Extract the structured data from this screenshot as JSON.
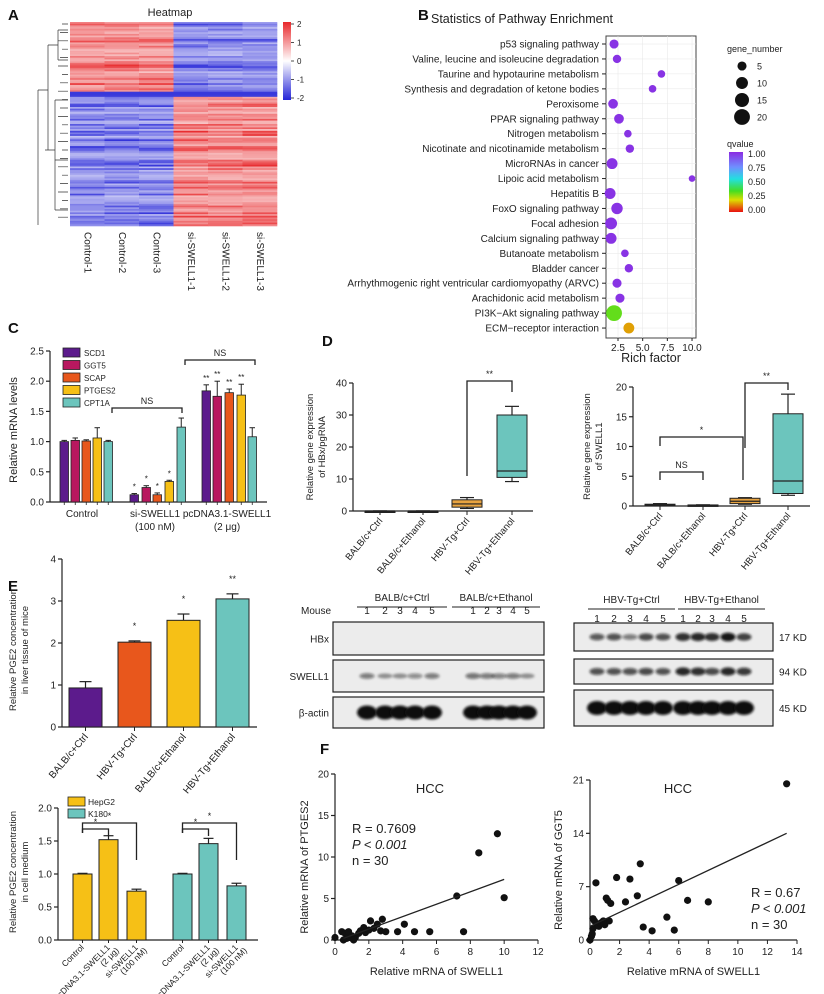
{
  "panel_labels": [
    "A",
    "B",
    "C",
    "D",
    "E",
    "F"
  ],
  "chart_data": {
    "heatmap": {
      "type": "heatmap",
      "title": "Heatmap",
      "columns": [
        "Control-1",
        "Control-2",
        "Control-3",
        "si-SWELL1-1",
        "si-SWELL1-2",
        "si-SWELL1-3"
      ],
      "scale_ticks": [
        "2",
        "1",
        "0",
        "-1",
        "-2"
      ],
      "colors": {
        "high": "#e8282b",
        "mid": "#ffffff",
        "low": "#2424d8"
      },
      "pattern": "upper ~35% rows: Control high / si-SWELL1 low; lower rows: Control low / si-SWELL1 high"
    },
    "enrichment": {
      "type": "scatter",
      "title": "Statistics of Pathway Enrichment",
      "xlabel": "Rich factor",
      "xticks": [
        "2.5",
        "5.0",
        "7.5",
        "10.0"
      ],
      "xlim": [
        1.2,
        10.4
      ],
      "pathways": [
        {
          "name": "p53 signaling pathway",
          "rich": 2.1,
          "genes": 5,
          "q": 0.98
        },
        {
          "name": "Valine, leucine and isoleucine degradation",
          "rich": 2.4,
          "genes": 4,
          "q": 0.98
        },
        {
          "name": "Taurine and hypotaurine metabolism",
          "rich": 6.9,
          "genes": 3,
          "q": 0.98
        },
        {
          "name": "Synthesis and degradation of ketone bodies",
          "rich": 6.0,
          "genes": 3,
          "q": 0.98
        },
        {
          "name": "Peroxisome",
          "rich": 2.0,
          "genes": 6,
          "q": 0.98
        },
        {
          "name": "PPAR signaling pathway",
          "rich": 2.6,
          "genes": 6,
          "q": 0.98
        },
        {
          "name": "Nitrogen metabolism",
          "rich": 3.5,
          "genes": 3,
          "q": 0.98
        },
        {
          "name": "Nicotinate and nicotinamide metabolism",
          "rich": 3.7,
          "genes": 4,
          "q": 0.98
        },
        {
          "name": "MicroRNAs in cancer",
          "rich": 1.9,
          "genes": 8,
          "q": 0.98
        },
        {
          "name": "Lipoic acid metabolism",
          "rich": 10.0,
          "genes": 2,
          "q": 0.98
        },
        {
          "name": "Hepatitis B",
          "rich": 1.7,
          "genes": 8,
          "q": 0.98
        },
        {
          "name": "FoxO signaling pathway",
          "rich": 2.4,
          "genes": 9,
          "q": 0.98
        },
        {
          "name": "Focal adhesion",
          "rich": 1.8,
          "genes": 10,
          "q": 0.98
        },
        {
          "name": "Calcium signaling pathway",
          "rich": 1.8,
          "genes": 8,
          "q": 0.98
        },
        {
          "name": "Butanoate metabolism",
          "rich": 3.2,
          "genes": 3,
          "q": 0.98
        },
        {
          "name": "Bladder cancer",
          "rich": 3.6,
          "genes": 4,
          "q": 0.98
        },
        {
          "name": "Arrhythmogenic right ventricular cardiomyopathy (ARVC)",
          "rich": 2.4,
          "genes": 5,
          "q": 0.98
        },
        {
          "name": "Arachidonic acid metabolism",
          "rich": 2.7,
          "genes": 5,
          "q": 0.98
        },
        {
          "name": "PI3K−Akt signaling pathway",
          "rich": 2.1,
          "genes": 20,
          "q": 0.32
        },
        {
          "name": "ECM−receptor interaction",
          "rich": 3.6,
          "genes": 8,
          "q": 0.14
        }
      ],
      "size_legend": {
        "title": "gene_number",
        "values": [
          "5",
          "10",
          "15",
          "20"
        ]
      },
      "color_legend": {
        "title": "qvalue",
        "ticks": [
          "1.00",
          "0.75",
          "0.50",
          "0.25",
          "0.00"
        ]
      }
    },
    "mrna_bars": {
      "type": "bar",
      "ylabel": "Relative mRNA levels",
      "ylim": [
        0,
        2.5
      ],
      "yticks": [
        "0.0",
        "0.5",
        "1.0",
        "1.5",
        "2.0",
        "2.5"
      ],
      "groups": [
        {
          "label": "Control",
          "sub": ""
        },
        {
          "label": "si-SWELL1",
          "sub": "(100 nM)"
        },
        {
          "label": "pcDNA3.1-SWELL1",
          "sub": "(2 μg)"
        }
      ],
      "series": [
        {
          "name": "SCD1",
          "color": "#5c1b8c",
          "values": [
            1.0,
            0.12,
            1.84
          ],
          "err": [
            0.02,
            0.02,
            0.1
          ],
          "sig": [
            "",
            "*",
            "**"
          ]
        },
        {
          "name": "GGT5",
          "color": "#b8185f",
          "values": [
            1.02,
            0.24,
            1.75
          ],
          "err": [
            0.04,
            0.03,
            0.25
          ],
          "sig": [
            "",
            "*",
            "**"
          ]
        },
        {
          "name": "SCAP",
          "color": "#e8571c",
          "values": [
            1.01,
            0.12,
            1.81
          ],
          "err": [
            0.02,
            0.03,
            0.06
          ],
          "sig": [
            "",
            "*",
            "**"
          ]
        },
        {
          "name": "PTGES2",
          "color": "#f6c016",
          "values": [
            1.06,
            0.34,
            1.77
          ],
          "err": [
            0.17,
            0.02,
            0.18
          ],
          "sig": [
            "",
            "*",
            "**"
          ]
        },
        {
          "name": "CPT1A",
          "color": "#6cc5bd",
          "values": [
            1.0,
            1.24,
            1.08
          ],
          "err": [
            0.02,
            0.15,
            0.15
          ],
          "sig": [
            "",
            "",
            ""
          ]
        }
      ],
      "brackets": [
        "NS",
        "NS"
      ]
    },
    "hbx_box": {
      "type": "box",
      "ylabel": [
        "Relative gene expression",
        "of HBx/pgRNA"
      ],
      "ylim": [
        0,
        40
      ],
      "yticks": [
        "0",
        "10",
        "20",
        "30",
        "40"
      ],
      "categories": [
        "BALB/c+Ctrl",
        "BALB/c+Ethanol",
        "HBV-Tg+Ctrl",
        "HBV-Tg+Ethanol"
      ],
      "boxes": [
        {
          "min": 0,
          "q1": 0,
          "median": 0,
          "q3": 0,
          "max": 0
        },
        {
          "min": 0,
          "q1": 0,
          "median": 0,
          "q3": 0,
          "max": 0
        },
        {
          "min": 0.8,
          "q1": 1.2,
          "median": 2.2,
          "q3": 3.5,
          "max": 4.2
        },
        {
          "min": 9.2,
          "q1": 10.5,
          "median": 12.5,
          "q3": 30,
          "max": 32.7
        }
      ],
      "brackets": [
        "**"
      ]
    },
    "swell1_box": {
      "type": "box",
      "ylabel": [
        "Relative gene expression",
        "of SWELL1"
      ],
      "ylim": [
        0,
        20
      ],
      "yticks": [
        "0",
        "5",
        "10",
        "15",
        "20"
      ],
      "categories": [
        "BALB/c+Ctrl",
        "BALB/c+Ethanol",
        "HBV-Tg+Ctrl",
        "HBV-Tg+Ethanol"
      ],
      "boxes": [
        {
          "min": 0.05,
          "q1": 0.1,
          "median": 0.2,
          "q3": 0.3,
          "max": 0.4
        },
        {
          "min": 0.05,
          "q1": 0.08,
          "median": 0.12,
          "q3": 0.18,
          "max": 0.2
        },
        {
          "min": 0.3,
          "q1": 0.4,
          "median": 0.8,
          "q3": 1.3,
          "max": 1.4
        },
        {
          "min": 1.8,
          "q1": 2.1,
          "median": 4.2,
          "q3": 15.5,
          "max": 18.8
        }
      ],
      "brackets": [
        "NS",
        "*",
        "**"
      ]
    },
    "western": {
      "type": "blot",
      "row_header": "Mouse",
      "left_groups": [
        "BALB/c+Ctrl",
        "BALB/c+Ethanol"
      ],
      "right_groups": [
        "HBV-Tg+Ctrl",
        "HBV-Tg+Ethanol"
      ],
      "lanes": [
        "1",
        "2",
        "3",
        "4",
        "5"
      ],
      "proteins": [
        {
          "name": "HBx",
          "kd": "17 KD",
          "left": [
            0,
            0,
            0,
            0,
            0,
            0,
            0,
            0,
            0,
            0
          ],
          "right": [
            0.55,
            0.6,
            0.35,
            0.65,
            0.6,
            0.8,
            0.85,
            0.8,
            0.95,
            0.7
          ]
        },
        {
          "name": "SWELL1",
          "kd": "94 KD",
          "left": [
            0.35,
            0.2,
            0.2,
            0.25,
            0.35,
            0.4,
            0.35,
            0.3,
            0.35,
            0.2
          ],
          "right": [
            0.6,
            0.6,
            0.6,
            0.65,
            0.6,
            0.85,
            0.8,
            0.65,
            0.85,
            0.75
          ]
        },
        {
          "name": "β-actin",
          "kd": "45 KD",
          "left": [
            1,
            1,
            1,
            1,
            1,
            1,
            1,
            1,
            1,
            1
          ],
          "right": [
            1,
            1,
            1,
            1,
            1,
            1,
            1,
            1,
            1,
            1
          ]
        }
      ]
    },
    "pge2_liver": {
      "type": "bar",
      "ylabel": [
        "Relative PGE2 concentration",
        "in liver tissue of mice"
      ],
      "ylim": [
        0,
        4
      ],
      "yticks": [
        "0",
        "1",
        "2",
        "3",
        "4"
      ],
      "categories": [
        "BALB/c+Ctrl",
        "HBV-Tg+Ctrl",
        "BALB/c+Ethanol",
        "HBV-Tg+Ethanol"
      ],
      "values": [
        0.93,
        2.02,
        2.54,
        3.05
      ],
      "err": [
        0.15,
        0.03,
        0.15,
        0.12
      ],
      "sig": [
        "",
        "*",
        "*",
        "**"
      ],
      "colors": [
        "#5c1b8c",
        "#e8571c",
        "#f6c016",
        "#6cc5bd"
      ]
    },
    "pge2_medium": {
      "type": "bar",
      "ylabel": [
        "Relative PGE2 concentration",
        "in cell medium"
      ],
      "ylim": [
        0,
        2.0
      ],
      "yticks": [
        "0.0",
        "0.5",
        "1.0",
        "1.5",
        "2.0"
      ],
      "categories": [
        "Control",
        "pcDNA3.1-SWELL1 (2 μg)",
        "si-SWELL1 (100 nM)"
      ],
      "tick_labels": [
        [
          "Control"
        ],
        [
          "pcDNA3.1-SWELL1",
          "(2 μg)"
        ],
        [
          "si-SWELL1",
          "(100 nM)"
        ]
      ],
      "series": [
        {
          "name": "HepG2",
          "color": "#f6c016",
          "values": [
            1.0,
            1.52,
            0.74
          ],
          "err": [
            0.01,
            0.06,
            0.03
          ]
        },
        {
          "name": "K180",
          "color": "#6cc5bd",
          "values": [
            1.0,
            1.46,
            0.82
          ],
          "err": [
            0.01,
            0.08,
            0.04
          ]
        }
      ],
      "sig": [
        "*",
        "*"
      ]
    },
    "corr_ptges2": {
      "type": "scatter",
      "title": "HCC",
      "xlabel": "Relative mRNA of SWELL1",
      "ylabel": "Relative mRNA of PTGES2",
      "xlim": [
        0,
        12
      ],
      "ylim": [
        0,
        20
      ],
      "xticks": [
        "0",
        "2",
        "4",
        "6",
        "8",
        "10",
        "12"
      ],
      "yticks": [
        "0",
        "5",
        "10",
        "15",
        "20"
      ],
      "stats": [
        "R = 0.7609",
        "P < 0.001",
        "n = 30"
      ],
      "fit": [
        [
          0.5,
          0.2
        ],
        [
          10,
          7.3
        ]
      ],
      "points": [
        [
          0,
          0.3
        ],
        [
          0.4,
          1
        ],
        [
          0.6,
          0.8
        ],
        [
          0.7,
          0.2
        ],
        [
          0.8,
          1
        ],
        [
          0.9,
          0.3
        ],
        [
          1,
          0.5
        ],
        [
          1.2,
          0.3
        ],
        [
          1.4,
          0.8
        ],
        [
          1.5,
          1.1
        ],
        [
          1.7,
          1.5
        ],
        [
          1.8,
          0.9
        ],
        [
          2,
          1.2
        ],
        [
          2.1,
          2.3
        ],
        [
          2.3,
          1.4
        ],
        [
          2.5,
          1.9
        ],
        [
          2.7,
          1.1
        ],
        [
          2.8,
          2.5
        ],
        [
          3,
          1
        ],
        [
          3.7,
          1
        ],
        [
          4.1,
          1.9
        ],
        [
          4.7,
          1
        ],
        [
          5.6,
          1
        ],
        [
          7.2,
          5.3
        ],
        [
          7.6,
          1
        ],
        [
          8.5,
          10.5
        ],
        [
          9.6,
          12.8
        ],
        [
          10,
          5.1
        ],
        [
          0.5,
          0
        ],
        [
          1.1,
          0
        ]
      ]
    },
    "corr_ggt5": {
      "type": "scatter",
      "title": "HCC",
      "xlabel": "Relative mRNA of SWELL1",
      "ylabel": "Relative mRNA of GGT5",
      "xlim": [
        0,
        14
      ],
      "ylim": [
        0,
        21
      ],
      "xticks": [
        "0",
        "2",
        "4",
        "6",
        "8",
        "10",
        "12",
        "14"
      ],
      "yticks": [
        "0",
        "7",
        "14",
        "21"
      ],
      "stats": [
        "R = 0.67",
        "P < 0.001",
        "n = 30"
      ],
      "fit": [
        [
          0,
          1.8
        ],
        [
          13.3,
          14
        ]
      ],
      "points": [
        [
          0,
          0
        ],
        [
          0.1,
          0.5
        ],
        [
          0.2,
          1.5
        ],
        [
          0.3,
          2.5
        ],
        [
          0.4,
          7.5
        ],
        [
          0.5,
          2
        ],
        [
          0.6,
          1.8
        ],
        [
          0.8,
          2.3
        ],
        [
          1,
          2
        ],
        [
          1.1,
          5.5
        ],
        [
          1.3,
          2.5
        ],
        [
          1.2,
          5.2
        ],
        [
          1.4,
          4.8
        ],
        [
          1.8,
          8.2
        ],
        [
          2.4,
          5
        ],
        [
          2.7,
          8
        ],
        [
          3.2,
          5.8
        ],
        [
          3.4,
          10
        ],
        [
          3.6,
          1.7
        ],
        [
          4.2,
          1.2
        ],
        [
          5.2,
          3
        ],
        [
          5.7,
          1.3
        ],
        [
          6,
          7.8
        ],
        [
          6.6,
          5.2
        ],
        [
          8,
          5
        ],
        [
          13.3,
          20.5
        ],
        [
          0.2,
          2.8
        ],
        [
          0.7,
          2.2
        ],
        [
          0.9,
          2.5
        ],
        [
          0.15,
          0.8
        ]
      ]
    }
  }
}
